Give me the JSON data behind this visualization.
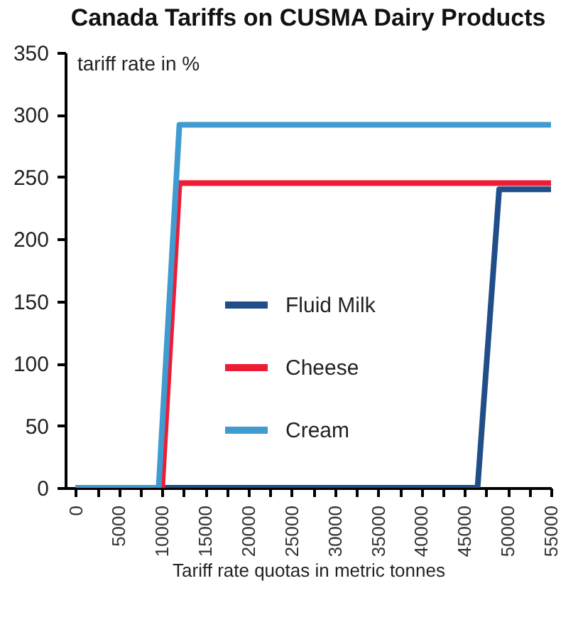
{
  "chart_data": {
    "type": "line",
    "title": "Canada Tariffs on CUSMA Dairy Products",
    "xlabel": "Tariff rate quotas in metric tonnes",
    "ylabel": "tariff rate in %",
    "series": [
      {
        "name": "Fluid Milk",
        "color": "#1f4e89",
        "x": [
          0,
          46500,
          49000,
          55000
        ],
        "values": [
          0,
          0,
          240,
          240
        ]
      },
      {
        "name": "Cheese",
        "color": "#ee1c35",
        "x": [
          0,
          10000,
          12000,
          55000
        ],
        "values": [
          0,
          0,
          245,
          245
        ]
      },
      {
        "name": "Cream",
        "color": "#3f9bd0",
        "x": [
          0,
          9600,
          12000,
          55000
        ],
        "values": [
          0,
          0,
          292,
          292
        ]
      }
    ],
    "xlim": [
      -1200,
      55000
    ],
    "ylim": [
      0,
      350
    ],
    "xticks": [
      0,
      {
        "value": 2500,
        "label": null
      },
      5000,
      {
        "value": 7500,
        "label": null
      },
      10000,
      {
        "value": 12500,
        "label": null
      },
      15000,
      {
        "value": 17500,
        "label": null
      },
      20000,
      {
        "value": 22500,
        "label": null
      },
      25000,
      {
        "value": 27500,
        "label": null
      },
      30000,
      {
        "value": 32500,
        "label": null
      },
      35000,
      {
        "value": 37500,
        "label": null
      },
      40000,
      {
        "value": 42500,
        "label": null
      },
      45000,
      {
        "value": 47500,
        "label": null
      },
      50000,
      {
        "value": 52500,
        "label": null
      },
      55000
    ],
    "yticks": [
      0,
      50,
      100,
      150,
      200,
      250,
      300,
      350
    ],
    "legend": "left",
    "grid": false,
    "line_style": "solid",
    "marker": "none"
  }
}
